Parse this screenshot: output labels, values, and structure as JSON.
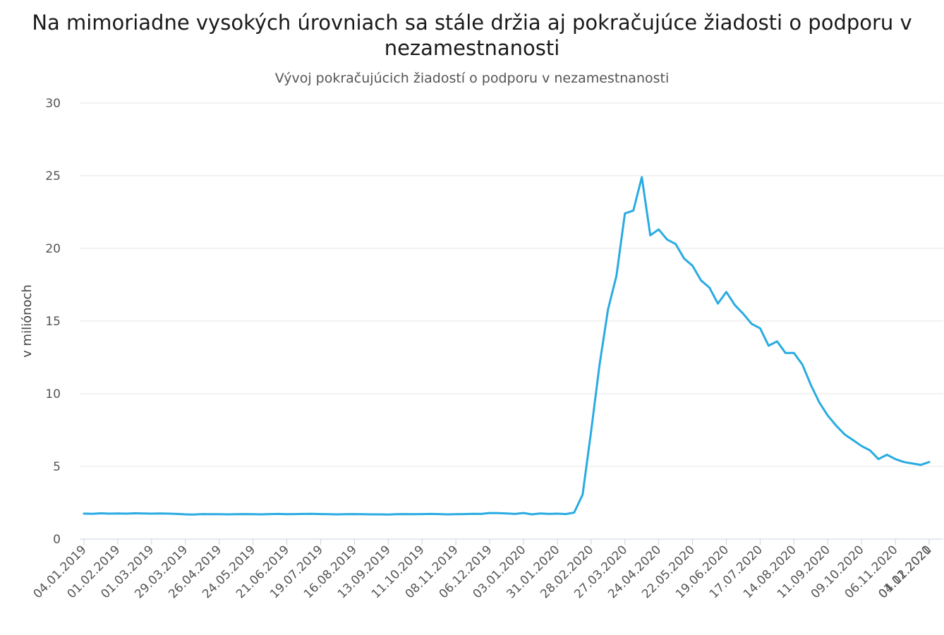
{
  "chart_data": {
    "type": "line",
    "title": "Na mimoriadne vysokých úrovniach sa stále držia aj pokračujúce žiadosti o podporu v nezamestnanosti",
    "subtitle": "Vývoj pokračujúcich žiadostí o podporu v nezamestnanosti",
    "ylabel": "v miliónoch",
    "xlabel": "",
    "ylim": [
      0,
      30
    ],
    "yticks": [
      0,
      5,
      10,
      15,
      20,
      25,
      30
    ],
    "grid": true,
    "legend": "none",
    "x_start": "04.01.2019",
    "x_step_weeks": 1,
    "xtick_labels": [
      "04.01.2019",
      "01.02.2019",
      "01.03.2019",
      "29.03.2019",
      "26.04.2019",
      "24.05.2019",
      "21.06.2019",
      "19.07.2019",
      "16.08.2019",
      "13.09.2019",
      "11.10.2019",
      "08.11.2019",
      "06.12.2019",
      "03.01.2020",
      "31.01.2020",
      "28.02.2020",
      "27.03.2020",
      "24.04.2020",
      "22.05.2020",
      "19.06.2020",
      "17.07.2020",
      "14.08.2020",
      "11.09.2020",
      "09.10.2020",
      "06.11.2020",
      "04.12.2020",
      "01.01.2021"
    ],
    "series": [
      {
        "name": "",
        "color": "#29abe2",
        "values": [
          1.75,
          1.74,
          1.77,
          1.75,
          1.76,
          1.75,
          1.77,
          1.76,
          1.75,
          1.76,
          1.75,
          1.73,
          1.7,
          1.69,
          1.72,
          1.71,
          1.71,
          1.7,
          1.71,
          1.72,
          1.71,
          1.7,
          1.72,
          1.73,
          1.71,
          1.72,
          1.73,
          1.74,
          1.72,
          1.71,
          1.7,
          1.71,
          1.72,
          1.71,
          1.7,
          1.7,
          1.69,
          1.71,
          1.72,
          1.71,
          1.72,
          1.73,
          1.72,
          1.7,
          1.71,
          1.72,
          1.74,
          1.73,
          1.79,
          1.78,
          1.76,
          1.73,
          1.79,
          1.7,
          1.76,
          1.73,
          1.75,
          1.72,
          1.82,
          3.06,
          7.4,
          12.0,
          15.8,
          18.1,
          22.4,
          22.6,
          24.9,
          20.9,
          21.3,
          20.6,
          20.3,
          19.3,
          18.8,
          17.8,
          17.3,
          16.2,
          17.0,
          16.1,
          15.5,
          14.8,
          14.5,
          13.3,
          13.6,
          12.8,
          12.8,
          12.0,
          10.6,
          9.4,
          8.5,
          7.8,
          7.2,
          6.8,
          6.4,
          6.1,
          5.5,
          5.8,
          5.5,
          5.3,
          5.2,
          5.1,
          5.3
        ]
      }
    ]
  }
}
